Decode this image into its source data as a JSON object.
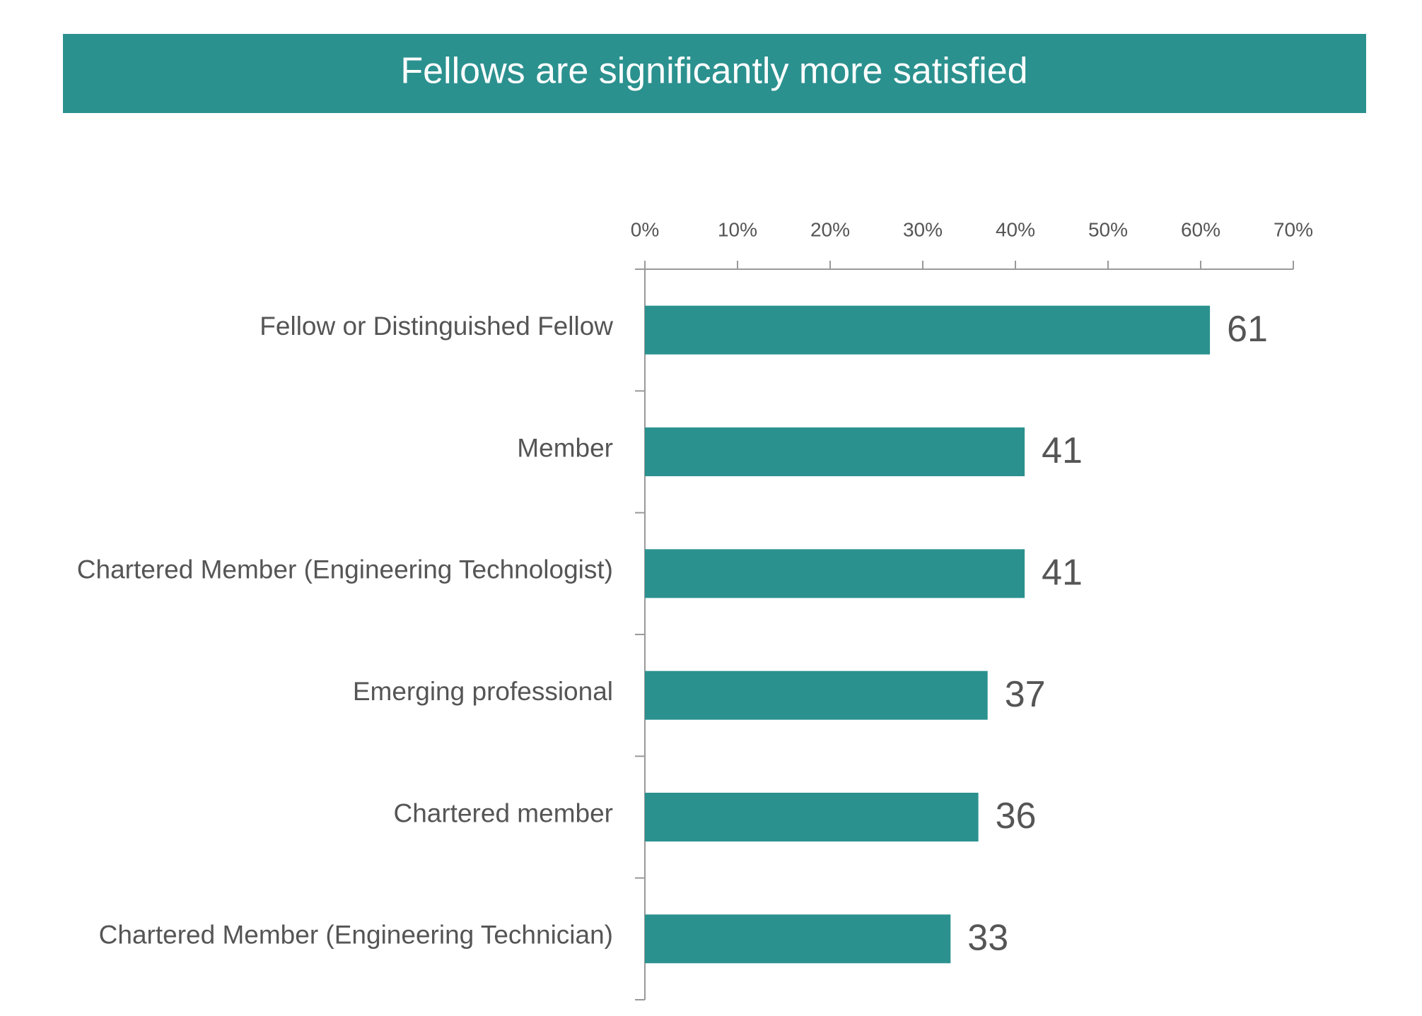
{
  "chart_data": {
    "type": "bar",
    "orientation": "horizontal",
    "title": "Fellows are significantly more satisfied",
    "categories": [
      "Fellow or Distinguished Fellow",
      "Member",
      "Chartered Member (Engineering Technologist)",
      "Emerging professional",
      "Chartered member",
      "Chartered Member (Engineering Technician)"
    ],
    "values": [
      61,
      41,
      41,
      37,
      36,
      33
    ],
    "color": "#2b918f",
    "xlim": [
      0,
      70
    ],
    "xticks": [
      {
        "value": 0,
        "label": "0%"
      },
      {
        "value": 10,
        "label": "10%"
      },
      {
        "value": 20,
        "label": "20%"
      },
      {
        "value": 30,
        "label": "30%"
      },
      {
        "value": 40,
        "label": "40%"
      },
      {
        "value": 50,
        "label": "50%"
      },
      {
        "value": 60,
        "label": "60%"
      },
      {
        "value": 70,
        "label": "70%"
      }
    ]
  }
}
